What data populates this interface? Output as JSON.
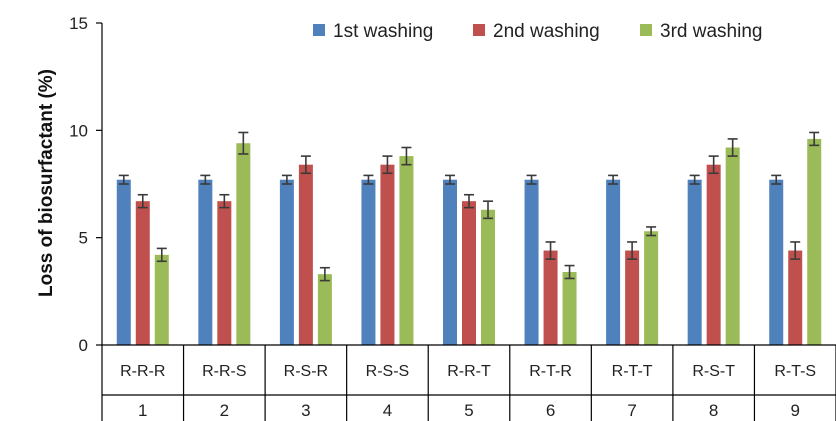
{
  "chart_data": {
    "type": "bar",
    "title": "",
    "ylabel": "Loss of biosurfactant (%)",
    "xlabel": "",
    "ylim": [
      0,
      15
    ],
    "yticks": [
      0,
      5,
      10,
      15
    ],
    "grid": false,
    "legend_position": "top-right",
    "categories": [
      "R-R-R",
      "R-R-S",
      "R-S-R",
      "R-S-S",
      "R-R-T",
      "R-T-R",
      "R-T-T",
      "R-S-T",
      "R-T-S"
    ],
    "group_numbers": [
      "1",
      "2",
      "3",
      "4",
      "5",
      "6",
      "7",
      "8",
      "9"
    ],
    "series": [
      {
        "name": "1st washing",
        "color": "#4F81BD",
        "values": [
          7.7,
          7.7,
          7.7,
          7.7,
          7.7,
          7.7,
          7.7,
          7.7,
          7.7
        ],
        "errors": [
          0.2,
          0.2,
          0.2,
          0.2,
          0.2,
          0.2,
          0.2,
          0.2,
          0.2
        ]
      },
      {
        "name": "2nd washing",
        "color": "#C0504D",
        "values": [
          6.7,
          6.7,
          8.4,
          8.4,
          6.7,
          4.4,
          4.4,
          8.4,
          4.4
        ],
        "errors": [
          0.3,
          0.3,
          0.4,
          0.4,
          0.3,
          0.4,
          0.4,
          0.4,
          0.4
        ]
      },
      {
        "name": "3rd washing",
        "color": "#9BBB59",
        "values": [
          4.2,
          9.4,
          3.3,
          8.8,
          6.3,
          3.4,
          5.3,
          9.2,
          9.6
        ],
        "errors": [
          0.3,
          0.5,
          0.3,
          0.4,
          0.4,
          0.3,
          0.2,
          0.4,
          0.3
        ]
      }
    ]
  }
}
